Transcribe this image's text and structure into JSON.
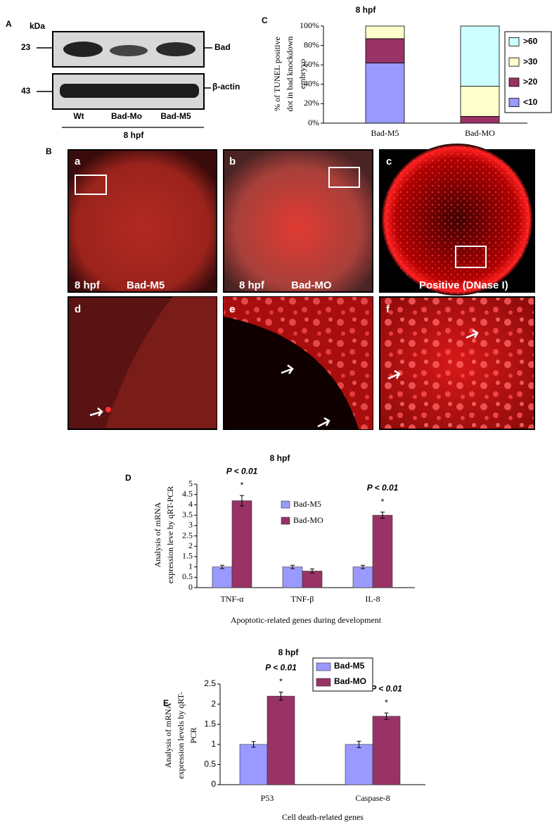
{
  "blot": {
    "panel": "A",
    "unit": "kDa",
    "markers": [
      "23",
      "43"
    ],
    "proteins": [
      "Bad",
      "β-actin"
    ],
    "lanes": [
      "Wt",
      "Bad-Mo",
      "Bad-M5"
    ],
    "stage": "8 hpf"
  },
  "images": {
    "panel": "B",
    "tiles": [
      {
        "letter": "a",
        "stage": "8 hpf",
        "label": "Bad-M5"
      },
      {
        "letter": "b",
        "stage": "8 hpf",
        "label": "Bad-MO"
      },
      {
        "letter": "c",
        "label": "Positive (DNase I)"
      },
      {
        "letter": "d"
      },
      {
        "letter": "e"
      },
      {
        "letter": "f"
      }
    ]
  },
  "chart_data": [
    {
      "type": "bar",
      "stacked": true,
      "panel": "C",
      "title": "8 hpf",
      "y_label": [
        "% of TUNEL positive",
        "dot in bad knockdown",
        "embryyo"
      ],
      "categories": [
        "Bad-M5",
        "Bad-MO"
      ],
      "series": [
        {
          "name": "<10",
          "color": "#9999ff",
          "values": [
            62,
            0
          ]
        },
        {
          "name": ">20",
          "color": "#993366",
          "values": [
            25,
            7
          ]
        },
        {
          "name": ">30",
          "color": "#ffffcc",
          "values": [
            13,
            31
          ]
        },
        {
          "name": ">60",
          "color": "#ccffff",
          "values": [
            0,
            62
          ]
        }
      ],
      "ylim": [
        0,
        100
      ],
      "yticks": [
        {
          "value": 0,
          "label": "0%"
        },
        {
          "value": 20,
          "label": "20%"
        },
        {
          "value": 40,
          "label": "40%"
        },
        {
          "value": 60,
          "label": "60%"
        },
        {
          "value": 80,
          "label": "80%"
        },
        {
          "value": 100,
          "label": "100%"
        }
      ],
      "legend": "right"
    },
    {
      "type": "bar",
      "panel": "D",
      "title": "8 hpf",
      "y_label": [
        "Analysis of mRNA",
        "expression leve by qRT-PCR"
      ],
      "x_label": "Apoptotic-related genes during development",
      "categories": [
        "TNF-α",
        "TNF-β",
        "IL-8"
      ],
      "series": [
        {
          "name": "Bad-M5",
          "color": "#9999ff",
          "values": [
            1,
            1,
            1
          ],
          "errors": [
            0.08,
            0.08,
            0.08
          ]
        },
        {
          "name": "Bad-MO",
          "color": "#993366",
          "values": [
            4.2,
            0.8,
            3.5
          ],
          "errors": [
            0.25,
            0.1,
            0.15
          ]
        }
      ],
      "annotations": [
        "P < 0.01",
        null,
        "P < 0.01"
      ],
      "markers": [
        "*",
        null,
        "*"
      ],
      "ylim": [
        0,
        5
      ],
      "yticks": [
        0,
        0.5,
        1,
        1.5,
        2,
        2.5,
        3,
        3.5,
        4,
        4.5,
        5
      ],
      "legend": "inside"
    },
    {
      "type": "bar",
      "panel": "E",
      "title": "8 hpf",
      "y_label": [
        "Analysis of mRNA",
        "expression levels by qRT-",
        "PCR"
      ],
      "x_label": "Cell death-related genes",
      "categories": [
        "P53",
        "Caspase-8"
      ],
      "series": [
        {
          "name": "Bad-M5",
          "color": "#9999ff",
          "values": [
            1,
            1
          ],
          "errors": [
            0.07,
            0.08
          ]
        },
        {
          "name": "Bad-MO",
          "color": "#993366",
          "values": [
            2.2,
            1.7
          ],
          "errors": [
            0.1,
            0.08
          ]
        }
      ],
      "annotations": [
        "P < 0.01",
        "P < 0.01"
      ],
      "markers": [
        "*",
        "*"
      ],
      "ylim": [
        0,
        2.5
      ],
      "yticks": [
        0,
        0.5,
        1,
        1.5,
        2,
        2.5
      ],
      "legend": "box"
    }
  ]
}
